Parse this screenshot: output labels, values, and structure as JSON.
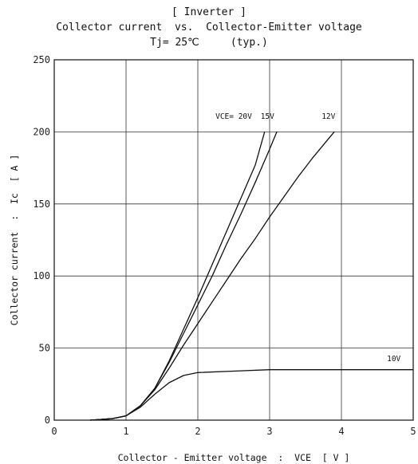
{
  "chart_data": {
    "type": "line",
    "title_lines": [
      "[ Inverter ]",
      "Collector current  vs.  Collector-Emitter voltage",
      "Tj= 25℃     (typ.)"
    ],
    "xlabel": "Collector - Emitter voltage  :  VCE  [ V ]",
    "ylabel": "Collector current  :  Ic  [ A ]",
    "xlim": [
      0,
      5
    ],
    "ylim": [
      0,
      250
    ],
    "x_ticks": [
      0,
      1,
      2,
      3,
      4,
      5
    ],
    "y_ticks": [
      0,
      50,
      100,
      150,
      200,
      250
    ],
    "grid": true,
    "series": [
      {
        "name": "VCE= 20V",
        "x": [
          0.5,
          0.8,
          1.0,
          1.2,
          1.4,
          1.6,
          1.8,
          2.0,
          2.2,
          2.4,
          2.6,
          2.8,
          2.93
        ],
        "y": [
          0,
          1,
          3,
          10,
          22,
          41,
          63,
          85,
          108,
          131,
          154,
          177,
          200
        ]
      },
      {
        "name": "15V",
        "x": [
          0.5,
          0.8,
          1.0,
          1.2,
          1.4,
          1.6,
          1.8,
          2.0,
          2.2,
          2.4,
          2.6,
          2.8,
          3.0,
          3.1
        ],
        "y": [
          0,
          1,
          3,
          10,
          22,
          40,
          60,
          80,
          100,
          122,
          143,
          165,
          188,
          200
        ]
      },
      {
        "name": "12V",
        "x": [
          0.5,
          0.8,
          1.0,
          1.2,
          1.4,
          1.6,
          1.8,
          2.0,
          2.2,
          2.4,
          2.6,
          2.8,
          3.0,
          3.2,
          3.4,
          3.6,
          3.8,
          3.9
        ],
        "y": [
          0,
          1,
          3,
          10,
          21,
          36,
          52,
          67,
          82,
          97,
          112,
          126,
          141,
          155,
          169,
          182,
          194,
          200
        ]
      },
      {
        "name": "10V",
        "x": [
          0.5,
          0.8,
          1.0,
          1.2,
          1.4,
          1.6,
          1.8,
          2.0,
          2.5,
          3.0,
          3.5,
          4.0,
          4.5,
          5.0
        ],
        "y": [
          0,
          1,
          3,
          9,
          18,
          26,
          31,
          33,
          34,
          35,
          35,
          35,
          35,
          35
        ]
      }
    ],
    "annotations": [
      {
        "text": "VCE= 20V",
        "x": 2.5,
        "y": 209
      },
      {
        "text": "15V",
        "x": 2.97,
        "y": 209
      },
      {
        "text": "12V",
        "x": 3.82,
        "y": 209
      },
      {
        "text": "10V",
        "x": 4.73,
        "y": 41
      }
    ]
  }
}
